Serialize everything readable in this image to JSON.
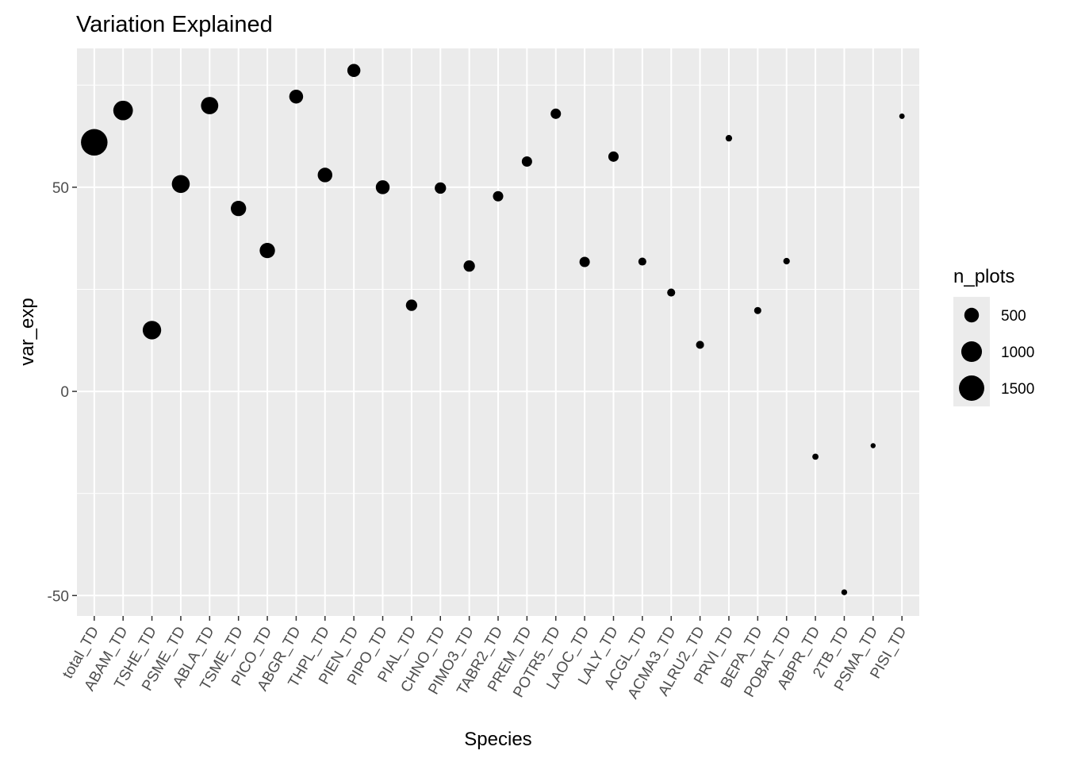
{
  "chart_data": {
    "type": "scatter",
    "title": "Variation Explained",
    "xlabel": "Species",
    "ylabel": "var_exp",
    "ylim": [
      -55,
      84
    ],
    "yticks": [
      -50,
      0,
      50
    ],
    "grid": true,
    "legend": {
      "title": "n_plots",
      "placement": "right",
      "entries": [
        {
          "label": "500",
          "value": 500
        },
        {
          "label": "1000",
          "value": 1000
        },
        {
          "label": "1500",
          "value": 1500
        }
      ]
    },
    "categories": [
      "total_TD",
      "ABAM_TD",
      "TSHE_TD",
      "PSME_TD",
      "ABLA_TD",
      "TSME_TD",
      "PICO_TD",
      "ABGR_TD",
      "THPL_TD",
      "PIEN_TD",
      "PIPO_TD",
      "PIAL_TD",
      "CHNO_TD",
      "PIMO3_TD",
      "TABR2_TD",
      "PREM_TD",
      "POTR5_TD",
      "LAOC_TD",
      "LALY_TD",
      "ACGL_TD",
      "ACMA3_TD",
      "ALRU2_TD",
      "PRVI_TD",
      "BEPA_TD",
      "POBAT_TD",
      "ABPR_TD",
      "2TB_TD",
      "PSMA_TD",
      "PISI_TD"
    ],
    "values": [
      61,
      68.8,
      15,
      50.8,
      70,
      44.8,
      34.5,
      72.2,
      53,
      78.6,
      50,
      21.1,
      49.8,
      30.7,
      47.8,
      56.3,
      68,
      31.7,
      57.5,
      31.8,
      24.2,
      11.4,
      62,
      19.8,
      31.9,
      -16,
      -49.2,
      -13.3,
      67.4
    ],
    "n_plots": [
      1650,
      900,
      800,
      750,
      700,
      550,
      550,
      450,
      500,
      400,
      450,
      300,
      300,
      300,
      250,
      250,
      250,
      250,
      250,
      150,
      150,
      150,
      100,
      120,
      100,
      90,
      80,
      60,
      70
    ]
  }
}
